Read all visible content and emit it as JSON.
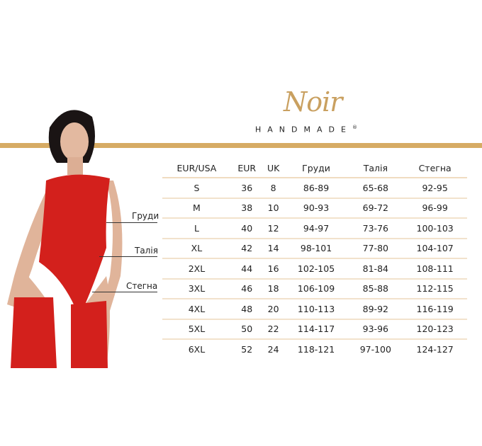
{
  "brand": {
    "logo_script": "Noir",
    "logo_sub": "HANDMADE",
    "registered": "®",
    "accent_color": "#d6ab64"
  },
  "measure_labels": {
    "chest": "Груди",
    "waist": "Талія",
    "hips": "Стегна"
  },
  "size_table": {
    "headers": [
      "EUR/USA",
      "EUR",
      "UK",
      "Груди",
      "Талія",
      "Стегна"
    ],
    "rows": [
      [
        "S",
        "36",
        "8",
        "86-89",
        "65-68",
        "92-95"
      ],
      [
        "M",
        "38",
        "10",
        "90-93",
        "69-72",
        "96-99"
      ],
      [
        "L",
        "40",
        "12",
        "94-97",
        "73-76",
        "100-103"
      ],
      [
        "XL",
        "42",
        "14",
        "98-101",
        "77-80",
        "104-107"
      ],
      [
        "2XL",
        "44",
        "16",
        "102-105",
        "81-84",
        "108-111"
      ],
      [
        "3XL",
        "46",
        "18",
        "106-109",
        "85-88",
        "112-115"
      ],
      [
        "4XL",
        "48",
        "20",
        "110-113",
        "89-92",
        "116-119"
      ],
      [
        "5XL",
        "50",
        "22",
        "114-117",
        "93-96",
        "120-123"
      ],
      [
        "6XL",
        "52",
        "24",
        "118-121",
        "97-100",
        "124-127"
      ]
    ]
  }
}
